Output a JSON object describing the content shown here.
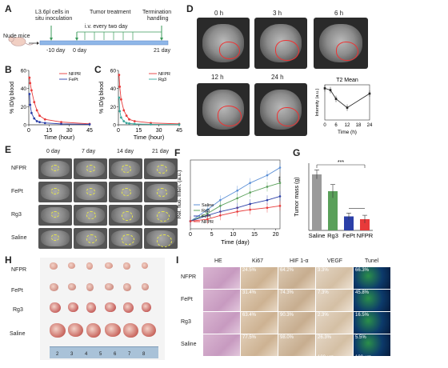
{
  "panels": [
    "A",
    "B",
    "C",
    "D",
    "E",
    "F",
    "G",
    "H",
    "I"
  ],
  "panel_a": {
    "subject": "Nude mice",
    "step1": "L3.6pl cells in",
    "step1b": "situ inoculation",
    "step2": "Tumor treatment",
    "step2b": "i.v. every two day",
    "step3": "Termination",
    "step3b": "handling",
    "t1": "-10 day",
    "t2": "0 day",
    "t3": "21 day"
  },
  "panel_d": {
    "times": [
      "0 h",
      "3 h",
      "6 h",
      "12 h",
      "24 h"
    ]
  },
  "panel_e": {
    "days": [
      "0 day",
      "7 day",
      "14 day",
      "21 day"
    ],
    "rows": [
      "NFPR",
      "FePt",
      "Rg3",
      "Saline"
    ]
  },
  "panel_h": {
    "rows": [
      "NFPR",
      "FePt",
      "Rg3",
      "Saline"
    ],
    "ruler": [
      "2",
      "3",
      "4",
      "5",
      "6",
      "7",
      "8"
    ]
  },
  "panel_i": {
    "cols": [
      "HE",
      "Ki67",
      "HIF 1-α",
      "VEGF",
      "Tunel"
    ],
    "rows": [
      "NFPR",
      "FePt",
      "Rg3",
      "Saline"
    ],
    "values": [
      [
        "24.5%",
        "64.2%",
        "3.3%",
        "66.3%"
      ],
      [
        "31.4%",
        "74.3%",
        "7.3%",
        "45.8%"
      ],
      [
        "63.4%",
        "90.3%",
        "2.3%",
        "16.5%"
      ],
      [
        "77.5%",
        "98.0%",
        "26.3%",
        "5.5%"
      ]
    ],
    "scale1": "100 μm",
    "scale2": "100 μm"
  },
  "chart_data": [
    {
      "id": "B",
      "type": "line",
      "xlabel": "Time (hour)",
      "ylabel": "% ID/g blood",
      "xlim": [
        0,
        45
      ],
      "ylim": [
        0,
        60
      ],
      "xticks": [
        0,
        15,
        30,
        45
      ],
      "yticks": [
        0,
        20,
        40,
        60
      ],
      "series": [
        {
          "name": "NFPR",
          "color": "#e83a3a",
          "x": [
            0.5,
            1,
            2,
            4,
            6,
            8,
            12,
            24,
            48
          ],
          "y": [
            52,
            46,
            38,
            25,
            16,
            10,
            6,
            3,
            1
          ]
        },
        {
          "name": "FePt",
          "color": "#2b3fa8",
          "x": [
            0.5,
            1,
            2,
            4,
            6,
            8,
            12,
            24,
            48
          ],
          "y": [
            34,
            22,
            13,
            7,
            4,
            3,
            2,
            1,
            0.5
          ]
        }
      ]
    },
    {
      "id": "C",
      "type": "line",
      "xlabel": "Time (hour)",
      "ylabel": "% ID/g blood",
      "xlim": [
        0,
        45
      ],
      "ylim": [
        0,
        60
      ],
      "xticks": [
        0,
        15,
        30,
        45
      ],
      "yticks": [
        0,
        20,
        40,
        60
      ],
      "series": [
        {
          "name": "NFPR",
          "color": "#e83a3a",
          "x": [
            0.5,
            1,
            2,
            4,
            6,
            8,
            12,
            24,
            48
          ],
          "y": [
            55,
            42,
            28,
            16,
            10,
            6,
            4,
            2,
            1
          ]
        },
        {
          "name": "Rg3",
          "color": "#3aa69a",
          "x": [
            0.5,
            1,
            2,
            4,
            6,
            8,
            12,
            24,
            48
          ],
          "y": [
            30,
            15,
            8,
            4,
            2,
            1.5,
            1,
            0.5,
            0.3
          ]
        }
      ]
    },
    {
      "id": "D-inset",
      "type": "line",
      "title": "T2 Mean",
      "xlabel": "Time (h)",
      "ylabel": "Intensity (a.u.)",
      "xlim": [
        0,
        24
      ],
      "xticks": [
        0,
        6,
        12,
        18,
        24
      ],
      "series": [
        {
          "name": "",
          "color": "#222222",
          "x": [
            0,
            3,
            6,
            12,
            24
          ],
          "y": [
            0.9,
            0.85,
            0.6,
            0.35,
            0.75
          ]
        }
      ]
    },
    {
      "id": "F",
      "type": "line",
      "xlabel": "Time (day)",
      "ylabel": "Rel. fluo. Inten. (a.u.)",
      "xlim": [
        0,
        21
      ],
      "xticks": [
        0,
        5,
        10,
        15,
        20
      ],
      "series": [
        {
          "name": "Saline",
          "color": "#5b8fd6",
          "x": [
            0,
            4,
            7,
            11,
            14,
            18,
            21
          ],
          "y": [
            1.0,
            1.3,
            1.55,
            1.8,
            2.0,
            2.2,
            2.4
          ]
        },
        {
          "name": "Rg3",
          "color": "#5aa05a",
          "x": [
            0,
            4,
            7,
            11,
            14,
            18,
            21
          ],
          "y": [
            1.0,
            1.2,
            1.4,
            1.6,
            1.75,
            1.9,
            2.0
          ]
        },
        {
          "name": "FePt",
          "color": "#2b3fa8",
          "x": [
            0,
            4,
            7,
            11,
            14,
            18,
            21
          ],
          "y": [
            1.0,
            1.15,
            1.25,
            1.35,
            1.45,
            1.55,
            1.65
          ]
        },
        {
          "name": "NFPR",
          "color": "#e83a3a",
          "x": [
            0,
            4,
            7,
            11,
            14,
            18,
            21
          ],
          "y": [
            1.0,
            1.05,
            1.15,
            1.25,
            1.3,
            1.35,
            1.4
          ]
        }
      ],
      "annotation": "***"
    },
    {
      "id": "G",
      "type": "bar",
      "ylabel": "Tumor mass (g)",
      "categories": [
        "Saline",
        "Rg3",
        "FePt",
        "NFPR"
      ],
      "values": [
        1.0,
        0.7,
        0.25,
        0.2
      ],
      "errors": [
        0.08,
        0.12,
        0.06,
        0.07
      ],
      "colors": [
        "#9a9a9a",
        "#5aa05a",
        "#2b3fa8",
        "#e83a3a"
      ],
      "ylim": [
        0,
        1.2
      ],
      "annotation": "***"
    }
  ]
}
